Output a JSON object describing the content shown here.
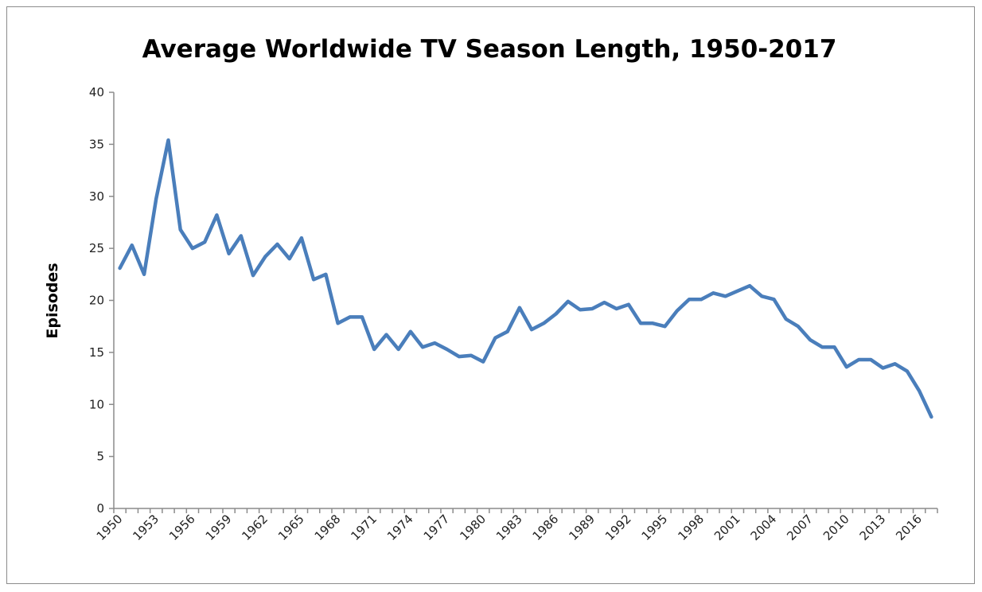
{
  "chart_data": {
    "type": "line",
    "title": "Average Worldwide TV Season Length, 1950-2017",
    "xlabel": "",
    "ylabel": "Episodes",
    "ylim": [
      0,
      40
    ],
    "yticks": [
      0,
      5,
      10,
      15,
      20,
      25,
      30,
      35,
      40
    ],
    "xtick_labels": [
      "1950",
      "1953",
      "1956",
      "1959",
      "1962",
      "1965",
      "1968",
      "1971",
      "1974",
      "1977",
      "1980",
      "1983",
      "1986",
      "1989",
      "1992",
      "1995",
      "1998",
      "2001",
      "2004",
      "2007",
      "2010",
      "2013",
      "2016"
    ],
    "grid": false,
    "legend": "none",
    "line_color": "#4a7ebb",
    "x": [
      1950,
      1951,
      1952,
      1953,
      1954,
      1955,
      1956,
      1957,
      1958,
      1959,
      1960,
      1961,
      1962,
      1963,
      1964,
      1965,
      1966,
      1967,
      1968,
      1969,
      1970,
      1971,
      1972,
      1973,
      1974,
      1975,
      1976,
      1977,
      1978,
      1979,
      1980,
      1981,
      1982,
      1983,
      1984,
      1985,
      1986,
      1987,
      1988,
      1989,
      1990,
      1991,
      1992,
      1993,
      1994,
      1995,
      1996,
      1997,
      1998,
      1999,
      2000,
      2001,
      2002,
      2003,
      2004,
      2005,
      2006,
      2007,
      2008,
      2009,
      2010,
      2011,
      2012,
      2013,
      2014,
      2015,
      2016,
      2017
    ],
    "values": [
      23.1,
      25.3,
      22.5,
      29.8,
      35.4,
      26.8,
      25.0,
      25.6,
      28.2,
      24.5,
      26.2,
      22.4,
      24.2,
      25.4,
      24.0,
      26.0,
      22.0,
      22.5,
      17.8,
      18.4,
      18.4,
      15.3,
      16.7,
      15.3,
      17.0,
      15.5,
      15.9,
      15.3,
      14.6,
      14.7,
      14.1,
      16.4,
      17.0,
      19.3,
      17.2,
      17.8,
      18.7,
      19.9,
      19.1,
      19.2,
      19.8,
      19.2,
      19.6,
      17.8,
      17.8,
      17.5,
      19.0,
      20.1,
      20.1,
      20.7,
      20.4,
      20.9,
      21.4,
      20.4,
      20.1,
      18.2,
      17.5,
      16.2,
      15.5,
      15.5,
      13.6,
      14.3,
      14.3,
      13.5,
      13.9,
      13.2,
      11.3,
      8.8
    ]
  }
}
